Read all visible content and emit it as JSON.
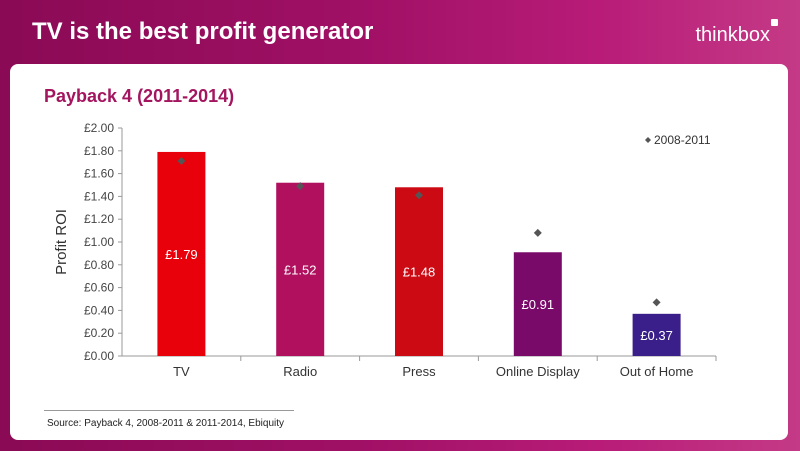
{
  "slide": {
    "title": "TV is the best profit generator",
    "logo": "thinkbox",
    "source": "Source: Payback 4, 2008-2011 & 2011-2014,  Ebiquity"
  },
  "chart_data": {
    "type": "bar",
    "title": "Payback 4 (2011-2014)",
    "ylabel": "Profit ROI",
    "categories": [
      "TV",
      "Radio",
      "Press",
      "Online Display",
      "Out of Home"
    ],
    "series": [
      {
        "values": [
          1.79,
          1.52,
          1.48,
          0.91,
          0.37
        ],
        "labels": [
          "£1.79",
          "£1.52",
          "£1.48",
          "£0.91",
          "£0.37"
        ],
        "colors": [
          "#e8000a",
          "#b0105e",
          "#cc0a14",
          "#7a0a6a",
          "#3a1e8a"
        ]
      },
      {
        "name": "2008-2011",
        "marker": "diamond",
        "color": "#555555",
        "values": [
          1.71,
          1.49,
          1.41,
          1.08,
          0.47
        ]
      }
    ],
    "ylim": [
      0,
      2.0
    ],
    "yticks": [
      "£0.00",
      "£0.20",
      "£0.40",
      "£0.60",
      "£0.80",
      "£1.00",
      "£1.20",
      "£1.40",
      "£1.60",
      "£1.80",
      "£2.00"
    ],
    "legend_position": "top-right",
    "grid": false
  }
}
